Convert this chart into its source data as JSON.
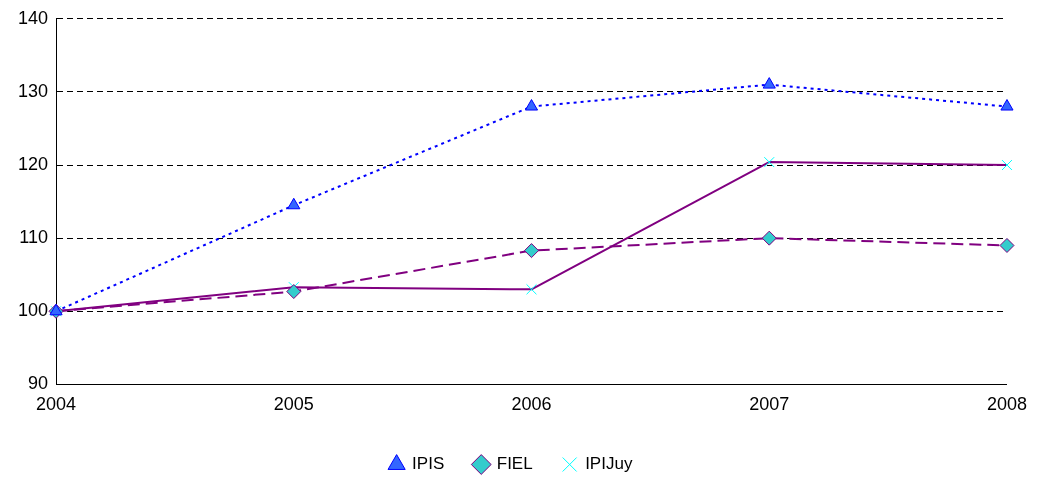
{
  "chart_data": {
    "type": "line",
    "categories": [
      "2004",
      "2005",
      "2006",
      "2007",
      "2008"
    ],
    "series": [
      {
        "name": "IPIS",
        "color": "#0000ff",
        "colors": [
          "#3366ff",
          "#3366ff",
          "#3366ff",
          "#3366ff",
          "#3366ff"
        ],
        "marker": "triangle",
        "line_style": "dotted",
        "values": [
          100,
          114.5,
          128,
          131,
          128
        ]
      },
      {
        "name": "FIEL",
        "color": "#800080",
        "colors": [
          "#33cccc",
          "#33cccc",
          "#33cccc",
          "#33cccc",
          "#33cccc"
        ],
        "marker": "diamond",
        "line_style": "dashed",
        "values": [
          100,
          102.7,
          108.3,
          110,
          109
        ]
      },
      {
        "name": "IPIJuy",
        "color": "#800080",
        "colors": [
          "#00ffff",
          "#00ffff",
          "#00ffff",
          "#00ffff",
          "#00ffff"
        ],
        "marker": "cross",
        "line_style": "solid",
        "values": [
          100,
          103.3,
          103,
          120.4,
          120
        ]
      }
    ],
    "ylim": [
      90,
      140
    ],
    "yticks": [
      90,
      100,
      110,
      120,
      130,
      140
    ],
    "grid": "y",
    "legend": "bottom"
  }
}
